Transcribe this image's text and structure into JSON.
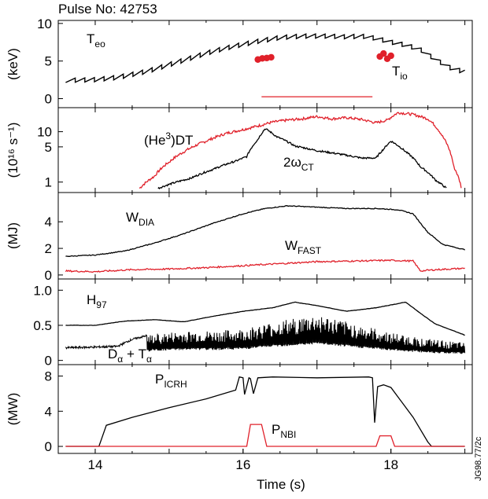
{
  "title": "Pulse No: 42753",
  "figure_code": "JG98.77/2c",
  "colors": {
    "black": "#000000",
    "red": "#e0202a"
  },
  "chart_data": {
    "type": "line",
    "xlabel": "Time (s)",
    "xlim": [
      13.5,
      19.1
    ],
    "xticks": [
      "14",
      "16",
      "18"
    ],
    "panels": [
      {
        "id": "temperature",
        "ylabel": "(keV)",
        "ylim": [
          -1.2,
          10.4
        ],
        "yticks": [
          {
            "label": "10",
            "v": 10
          },
          {
            "label": "5",
            "v": 5
          },
          {
            "label": "0",
            "v": 0
          }
        ],
        "series": [
          {
            "name": "Teo",
            "name_main": "T",
            "name_sub": "eo",
            "color": "black",
            "sawtooth": 0.8,
            "points": [
              [
                13.6,
                2.5
              ],
              [
                14.0,
                2.6
              ],
              [
                14.3,
                2.9
              ],
              [
                14.7,
                3.7
              ],
              [
                15.0,
                4.6
              ],
              [
                15.3,
                5.5
              ],
              [
                15.6,
                6.4
              ],
              [
                15.9,
                7.1
              ],
              [
                16.2,
                7.7
              ],
              [
                16.5,
                8.2
              ],
              [
                16.8,
                8.4
              ],
              [
                17.1,
                8.4
              ],
              [
                17.4,
                8.3
              ],
              [
                17.6,
                8.4
              ],
              [
                17.8,
                8.1
              ],
              [
                18.0,
                7.6
              ],
              [
                18.2,
                7.2
              ],
              [
                18.4,
                6.6
              ],
              [
                18.6,
                5.3
              ],
              [
                18.8,
                4.2
              ],
              [
                19.0,
                3.6
              ]
            ]
          },
          {
            "name": "Tio",
            "name_main": "T",
            "name_sub": "io",
            "color": "red",
            "markers": true,
            "points": [
              [
                16.2,
                5.2
              ],
              [
                16.26,
                5.35
              ],
              [
                16.32,
                5.4
              ],
              [
                16.38,
                5.5
              ],
              [
                17.85,
                5.6
              ],
              [
                17.9,
                6.0
              ],
              [
                17.95,
                5.3
              ],
              [
                18.0,
                5.7
              ]
            ]
          },
          {
            "name": "",
            "color": "red",
            "segment": true,
            "points": [
              [
                16.25,
                0.25
              ],
              [
                17.75,
                0.25
              ]
            ]
          }
        ]
      },
      {
        "id": "neutrons",
        "ylabel": "(10¹⁶ s⁻¹)",
        "scale": "log",
        "ylim": [
          0.62,
          30
        ],
        "yticks": [
          {
            "label": "10",
            "v": 10
          },
          {
            "label": "5",
            "v": 5
          },
          {
            "label": "1",
            "v": 1
          }
        ],
        "series": [
          {
            "name": "(He3)DT",
            "name_main": "(He",
            "name_sup": "3",
            "name_tail": ")DT",
            "color": "red",
            "noise": 0.03,
            "points": [
              [
                14.6,
                0.75
              ],
              [
                14.8,
                1.3
              ],
              [
                15.0,
                2.5
              ],
              [
                15.2,
                4.0
              ],
              [
                15.5,
                6.5
              ],
              [
                15.8,
                9.5
              ],
              [
                16.0,
                11.0
              ],
              [
                16.2,
                13.0
              ],
              [
                16.4,
                15.5
              ],
              [
                16.6,
                17.0
              ],
              [
                16.8,
                18.0
              ],
              [
                17.0,
                20.0
              ],
              [
                17.2,
                18.0
              ],
              [
                17.4,
                19.0
              ],
              [
                17.6,
                17.5
              ],
              [
                17.8,
                15.0
              ],
              [
                17.95,
                17.0
              ],
              [
                18.1,
                24.0
              ],
              [
                18.3,
                22.0
              ],
              [
                18.5,
                18.0
              ],
              [
                18.7,
                8.0
              ],
              [
                18.85,
                2.0
              ],
              [
                18.95,
                0.8
              ]
            ]
          },
          {
            "name": "2ωCT",
            "name_main": "2ω",
            "name_sub": "CT",
            "color": "black",
            "noise": 0.02,
            "points": [
              [
                14.85,
                0.75
              ],
              [
                15.0,
                0.9
              ],
              [
                15.3,
                1.2
              ],
              [
                15.6,
                1.8
              ],
              [
                15.9,
                2.6
              ],
              [
                16.05,
                3.2
              ],
              [
                16.2,
                7.0
              ],
              [
                16.3,
                11.5
              ],
              [
                16.45,
                8.0
              ],
              [
                16.7,
                5.2
              ],
              [
                17.0,
                4.2
              ],
              [
                17.3,
                3.6
              ],
              [
                17.6,
                3.0
              ],
              [
                17.8,
                3.0
              ],
              [
                17.9,
                4.5
              ],
              [
                18.0,
                6.5
              ],
              [
                18.2,
                4.0
              ],
              [
                18.4,
                2.0
              ],
              [
                18.6,
                1.1
              ],
              [
                18.75,
                0.75
              ]
            ]
          }
        ]
      },
      {
        "id": "energy",
        "ylabel": "(MJ)",
        "ylim": [
          -0.3,
          6.2
        ],
        "yticks": [
          {
            "label": "4",
            "v": 4
          },
          {
            "label": "2",
            "v": 2
          },
          {
            "label": "0",
            "v": 0
          }
        ],
        "series": [
          {
            "name": "WDIA",
            "name_main": "W",
            "name_sub": "DIA",
            "color": "black",
            "noise": 0.03,
            "points": [
              [
                13.6,
                1.4
              ],
              [
                14.0,
                1.5
              ],
              [
                14.4,
                1.8
              ],
              [
                14.8,
                2.4
              ],
              [
                15.2,
                3.1
              ],
              [
                15.6,
                3.9
              ],
              [
                16.0,
                4.6
              ],
              [
                16.3,
                5.0
              ],
              [
                16.6,
                5.2
              ],
              [
                17.0,
                5.1
              ],
              [
                17.4,
                5.0
              ],
              [
                17.8,
                5.0
              ],
              [
                18.1,
                4.9
              ],
              [
                18.3,
                4.6
              ],
              [
                18.5,
                3.2
              ],
              [
                18.7,
                2.3
              ],
              [
                19.0,
                1.9
              ]
            ]
          },
          {
            "name": "WFAST",
            "name_main": "W",
            "name_sub": "FAST",
            "color": "red",
            "noise": 0.06,
            "points": [
              [
                13.6,
                0.3
              ],
              [
                14.0,
                0.25
              ],
              [
                14.5,
                0.4
              ],
              [
                15.0,
                0.45
              ],
              [
                15.5,
                0.55
              ],
              [
                16.0,
                0.7
              ],
              [
                16.5,
                0.85
              ],
              [
                17.0,
                1.0
              ],
              [
                17.5,
                1.05
              ],
              [
                18.0,
                1.1
              ],
              [
                18.3,
                1.05
              ],
              [
                18.4,
                0.3
              ],
              [
                18.6,
                0.4
              ],
              [
                19.0,
                0.5
              ]
            ]
          }
        ]
      },
      {
        "id": "confinement",
        "ylabel": "",
        "ylim": [
          -0.06,
          1.16
        ],
        "yticks": [
          {
            "label": "1.0",
            "v": 1.0
          },
          {
            "label": "0.5",
            "v": 0.5
          },
          {
            "label": "0",
            "v": 0
          }
        ],
        "series": [
          {
            "name": "H97",
            "name_main": "H",
            "name_sub": "97",
            "color": "black",
            "noise": 0.01,
            "points": [
              [
                13.6,
                0.5
              ],
              [
                14.0,
                0.5
              ],
              [
                14.4,
                0.56
              ],
              [
                14.8,
                0.58
              ],
              [
                15.2,
                0.55
              ],
              [
                15.6,
                0.63
              ],
              [
                16.0,
                0.7
              ],
              [
                16.4,
                0.75
              ],
              [
                16.7,
                0.83
              ],
              [
                17.0,
                0.78
              ],
              [
                17.4,
                0.7
              ],
              [
                17.8,
                0.75
              ],
              [
                18.2,
                0.83
              ],
              [
                18.4,
                0.67
              ],
              [
                18.6,
                0.52
              ],
              [
                19.0,
                0.36
              ]
            ]
          },
          {
            "name": "Dα + Tα",
            "name_main": "D",
            "name_sub": "α",
            "name_tail": " + T",
            "name_sub2": "α",
            "color": "black",
            "envelope": true,
            "noise": 0.03,
            "points": [
              [
                13.6,
                0.18
              ],
              [
                14.0,
                0.19
              ],
              [
                14.3,
                0.2
              ],
              [
                14.5,
                0.3
              ],
              [
                14.8,
                0.38
              ],
              [
                15.2,
                0.42
              ],
              [
                15.6,
                0.42
              ],
              [
                16.0,
                0.45
              ],
              [
                16.4,
                0.55
              ],
              [
                16.8,
                0.62
              ],
              [
                17.0,
                0.66
              ],
              [
                17.3,
                0.58
              ],
              [
                17.6,
                0.5
              ],
              [
                18.0,
                0.4
              ],
              [
                18.4,
                0.32
              ],
              [
                18.8,
                0.27
              ],
              [
                19.0,
                0.25
              ]
            ]
          }
        ]
      },
      {
        "id": "power",
        "ylabel": "(MW)",
        "ylim": [
          -0.8,
          9.3
        ],
        "yticks": [
          {
            "label": "8",
            "v": 8
          },
          {
            "label": "4",
            "v": 4
          },
          {
            "label": "0",
            "v": 0
          }
        ],
        "series": [
          {
            "name": "PICRH",
            "name_main": "P",
            "name_sub": "ICRH",
            "color": "black",
            "points": [
              [
                13.6,
                0
              ],
              [
                14.05,
                0
              ],
              [
                14.15,
                2.4
              ],
              [
                14.5,
                3.3
              ],
              [
                15.0,
                4.4
              ],
              [
                15.5,
                5.4
              ],
              [
                15.9,
                6.4
              ],
              [
                15.95,
                7.9
              ],
              [
                16.0,
                7.8
              ],
              [
                16.02,
                5.9
              ],
              [
                16.08,
                7.8
              ],
              [
                16.1,
                7.7
              ],
              [
                16.14,
                6.0
              ],
              [
                16.2,
                7.8
              ],
              [
                16.4,
                7.9
              ],
              [
                17.0,
                7.8
              ],
              [
                17.7,
                7.9
              ],
              [
                17.75,
                7.8
              ],
              [
                17.78,
                2.7
              ],
              [
                17.82,
                6.8
              ],
              [
                17.9,
                7.0
              ],
              [
                18.0,
                6.7
              ],
              [
                18.3,
                3.3
              ],
              [
                18.5,
                0.5
              ],
              [
                18.55,
                0
              ],
              [
                19.0,
                0
              ]
            ]
          },
          {
            "name": "PNBI",
            "name_main": "P",
            "name_sub": "NBI",
            "color": "red",
            "points": [
              [
                13.6,
                0
              ],
              [
                16.05,
                0
              ],
              [
                16.1,
                2.5
              ],
              [
                16.25,
                2.5
              ],
              [
                16.32,
                0
              ],
              [
                17.8,
                0
              ],
              [
                17.85,
                1.2
              ],
              [
                18.0,
                1.2
              ],
              [
                18.05,
                0
              ],
              [
                19.0,
                0
              ]
            ]
          }
        ]
      }
    ]
  }
}
